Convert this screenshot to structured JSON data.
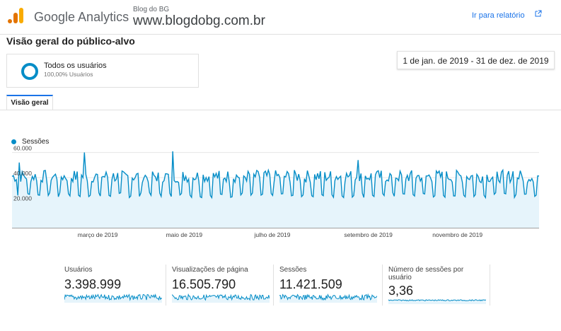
{
  "header": {
    "product_name": "Google Analytics",
    "account_name": "Blog do BG",
    "property_url": "www.blogdobg.com.br",
    "open_report": "Ir para relatório"
  },
  "page": {
    "title": "Visão geral do público-alvo"
  },
  "segment": {
    "name": "Todos os usuários",
    "percentage": "100,00% Usuários",
    "color": "#058dc7"
  },
  "date_range": "1 de jan. de 2019 - 31 de dez. de 2019",
  "tabs": [
    {
      "label": "Visão geral",
      "active": true
    }
  ],
  "icons": {
    "logo": "analytics-logo-icon",
    "external": "external-link-icon"
  },
  "colors": {
    "accent": "#058dc7",
    "area_fill": "#e6f4fb",
    "logo_orange": "#f9ab00",
    "logo_dark_orange": "#e37400",
    "link": "#1a73e8"
  },
  "chart_data": {
    "type": "line",
    "series": [
      {
        "name": "Sessões",
        "color": "#058dc7"
      }
    ],
    "x_tick_labels": [
      "março de 2019",
      "maio de 2019",
      "julho de 2019",
      "setembro de 2019",
      "novembro de 2019"
    ],
    "y_tick_labels": [
      "20.000",
      "40.000",
      "60.000"
    ],
    "y_ticks": [
      20000,
      40000,
      60000
    ],
    "ylim": [
      0,
      66000
    ],
    "x_range": [
      "2019-01-01",
      "2019-12-31"
    ],
    "grid": true,
    "legend": "top-left",
    "area": true,
    "weekly_pattern": {
      "peak_weekday_values_approx": [
        40000,
        44000
      ],
      "weekend_low_values_approx": [
        24000,
        28000
      ]
    },
    "notable_values": [
      {
        "date": "2019-01-06",
        "value": 52000
      },
      {
        "date": "2019-02-20",
        "value": 60000
      },
      {
        "date": "2019-04-22",
        "value": 61000
      },
      {
        "date": "2019-08-28",
        "value": 54000
      },
      {
        "date": "2019-12-13",
        "value": 45000
      }
    ]
  },
  "metrics": [
    {
      "label": "Usuários",
      "value": "3.398.999"
    },
    {
      "label": "Visualizações de página",
      "value": "16.505.790"
    },
    {
      "label": "Sessões",
      "value": "11.421.509"
    },
    {
      "label": "Número de sessões por usuário",
      "value": "3,36"
    }
  ]
}
